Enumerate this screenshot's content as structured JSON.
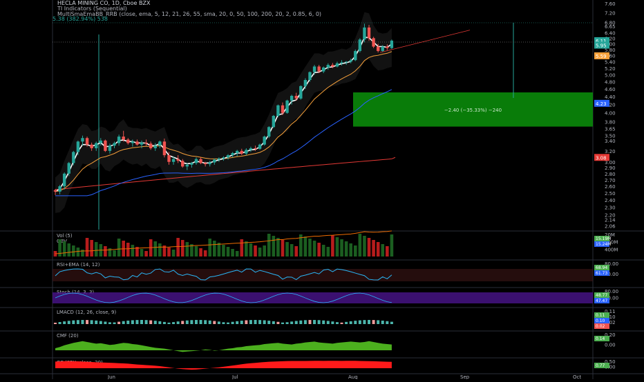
{
  "header": {
    "title": "HECLA MINING CO, 1D, Cboe BZX",
    "indicator1": "TI Indicators (Sequential)",
    "indicator2": "MultiSmaEmaBB_RRB (close, ema, 5, 12, 21, 26, 55, sma, 20, 0, 50, 100, 200, 20, 2, 0.85, 6, 0)",
    "measure_label": "5.38 (382.94%) 538"
  },
  "colors": {
    "background": "#000000",
    "up": "#26a69a",
    "down": "#ef5350",
    "green_box": "#0a8a0a",
    "ema5": "#ffffff",
    "ema21": "#f7a13b",
    "sma50": "#2962ff",
    "sma200": "#e53935",
    "cc_fill": "#ff1a1a",
    "cmf_fill": "#4caf1e",
    "stoch_band": "#4a148c",
    "rsi_line": "#29b6f6"
  },
  "chart_data": {
    "type": "candlestick",
    "x_ticks": [
      "Jun",
      "Jul",
      "Aug",
      "Sep",
      "Oct"
    ],
    "price_axis_ticks": [
      "7.60",
      "7.20",
      "6.80",
      "6.65",
      "6.40",
      "6.20",
      "6.00",
      "5.80",
      "5.60",
      "5.40",
      "5.20",
      "5.00",
      "4.80",
      "4.60",
      "4.40",
      "4.20",
      "4.00",
      "3.80",
      "3.65",
      "3.50",
      "3.40",
      "3.20",
      "3.00",
      "2.90",
      "2.80",
      "2.70",
      "2.60",
      "2.50",
      "2.40",
      "2.30",
      "2.20",
      "2.14",
      "2.06"
    ],
    "price_badges": [
      {
        "value": "6.11",
        "color": "#26a69a"
      },
      {
        "value": "5.95",
        "color": "#26a69a"
      },
      {
        "value": "5.59",
        "color": "#f7a13b"
      },
      {
        "value": "4.23",
        "color": "#2962ff"
      },
      {
        "value": "3.08",
        "color": "#e53935"
      }
    ],
    "candles": [
      [
        2.54,
        2.56,
        2.47,
        2.52
      ],
      [
        2.52,
        2.62,
        2.48,
        2.6
      ],
      [
        2.6,
        2.82,
        2.55,
        2.8
      ],
      [
        2.8,
        3.0,
        2.76,
        2.98
      ],
      [
        2.98,
        3.2,
        2.94,
        3.18
      ],
      [
        3.18,
        3.4,
        3.12,
        3.38
      ],
      [
        3.38,
        3.5,
        3.3,
        3.45
      ],
      [
        3.45,
        3.48,
        3.28,
        3.32
      ],
      [
        3.32,
        3.36,
        3.2,
        3.25
      ],
      [
        3.25,
        3.38,
        3.2,
        3.35
      ],
      [
        3.35,
        3.45,
        3.3,
        3.4
      ],
      [
        3.4,
        3.42,
        3.18,
        3.2
      ],
      [
        3.2,
        3.34,
        3.15,
        3.3
      ],
      [
        3.3,
        3.38,
        3.25,
        3.35
      ],
      [
        3.35,
        3.52,
        3.3,
        3.48
      ],
      [
        3.48,
        3.6,
        3.38,
        3.42
      ],
      [
        3.42,
        3.45,
        3.32,
        3.35
      ],
      [
        3.35,
        3.42,
        3.28,
        3.38
      ],
      [
        3.38,
        3.42,
        3.3,
        3.32
      ],
      [
        3.32,
        3.4,
        3.25,
        3.36
      ],
      [
        3.36,
        3.42,
        3.3,
        3.34
      ],
      [
        3.34,
        3.38,
        3.22,
        3.25
      ],
      [
        3.25,
        3.35,
        3.2,
        3.3
      ],
      [
        3.3,
        3.4,
        3.25,
        3.38
      ],
      [
        3.38,
        3.44,
        3.08,
        3.12
      ],
      [
        3.12,
        3.18,
        2.95,
        3.0
      ],
      [
        3.0,
        3.1,
        2.95,
        3.05
      ],
      [
        3.05,
        3.12,
        2.98,
        3.02
      ],
      [
        3.02,
        3.05,
        2.9,
        2.92
      ],
      [
        2.92,
        2.98,
        2.86,
        2.95
      ],
      [
        2.95,
        3.0,
        2.9,
        2.98
      ],
      [
        2.98,
        3.08,
        2.95,
        3.05
      ],
      [
        3.05,
        3.08,
        2.96,
        2.98
      ],
      [
        2.98,
        3.0,
        2.92,
        2.96
      ],
      [
        2.96,
        3.02,
        2.92,
        2.99
      ],
      [
        2.99,
        3.06,
        2.95,
        3.04
      ],
      [
        3.04,
        3.08,
        3.0,
        3.06
      ],
      [
        3.06,
        3.1,
        3.02,
        3.08
      ],
      [
        3.08,
        3.14,
        3.04,
        3.12
      ],
      [
        3.12,
        3.18,
        3.08,
        3.16
      ],
      [
        3.16,
        3.22,
        3.1,
        3.2
      ],
      [
        3.2,
        3.24,
        3.12,
        3.15
      ],
      [
        3.15,
        3.25,
        3.12,
        3.22
      ],
      [
        3.22,
        3.28,
        3.18,
        3.25
      ],
      [
        3.25,
        3.3,
        3.2,
        3.24
      ],
      [
        3.24,
        3.34,
        3.22,
        3.32
      ],
      [
        3.32,
        3.5,
        3.3,
        3.48
      ],
      [
        3.48,
        3.7,
        3.45,
        3.68
      ],
      [
        3.68,
        3.95,
        3.66,
        3.93
      ],
      [
        3.93,
        4.2,
        3.9,
        4.18
      ],
      [
        4.18,
        4.25,
        3.95,
        4.0
      ],
      [
        4.0,
        4.32,
        3.98,
        4.3
      ],
      [
        4.3,
        4.45,
        4.2,
        4.42
      ],
      [
        4.42,
        4.5,
        4.3,
        4.35
      ],
      [
        4.35,
        4.7,
        4.32,
        4.68
      ],
      [
        4.68,
        4.9,
        4.6,
        4.85
      ],
      [
        4.85,
        5.1,
        4.8,
        5.08
      ],
      [
        5.08,
        5.3,
        5.0,
        5.25
      ],
      [
        5.25,
        5.3,
        5.05,
        5.1
      ],
      [
        5.1,
        5.25,
        5.05,
        5.22
      ],
      [
        5.22,
        5.35,
        5.15,
        5.3
      ],
      [
        5.3,
        5.36,
        5.2,
        5.25
      ],
      [
        5.25,
        5.4,
        5.22,
        5.35
      ],
      [
        5.35,
        5.45,
        5.28,
        5.38
      ],
      [
        5.38,
        5.42,
        5.3,
        5.4
      ],
      [
        5.4,
        5.5,
        5.35,
        5.45
      ],
      [
        5.45,
        5.8,
        5.42,
        5.75
      ],
      [
        5.75,
        6.2,
        5.7,
        6.15
      ],
      [
        6.15,
        6.75,
        6.05,
        6.6
      ],
      [
        6.6,
        6.7,
        6.1,
        6.2
      ],
      [
        6.2,
        6.25,
        5.85,
        5.9
      ],
      [
        5.9,
        6.0,
        5.7,
        5.75
      ],
      [
        5.75,
        5.95,
        5.72,
        5.9
      ],
      [
        5.9,
        5.98,
        5.78,
        5.85
      ],
      [
        5.85,
        6.15,
        5.82,
        6.11
      ]
    ],
    "measure_box": {
      "label": "−2.40 (−35.33%) −240",
      "top": 4.51,
      "bottom": 3.69,
      "from_index": 70
    },
    "panes": [
      {
        "name": "Vol (5)",
        "sub": "OBV",
        "ticks": [
          "20M",
          "500M",
          "400M"
        ],
        "badges": [
          "15.19M",
          "15.24M"
        ]
      },
      {
        "name": "RSI+EMA (14, 12)",
        "ticks": [
          "80.00",
          "40.00"
        ],
        "badges": [
          "68.94",
          "61.73"
        ]
      },
      {
        "name": "Stoch (14, 3, 3)",
        "ticks": [
          "80.00",
          "20.00"
        ],
        "badges": [
          "48.77",
          "47.47"
        ]
      },
      {
        "name": "LMACD (12, 26, close, 9)",
        "ticks": [
          "0.11",
          "0.10",
          "0.02"
        ],
        "badges": [
          "0.11",
          "0.10",
          "0.02"
        ]
      },
      {
        "name": "CMF (20)",
        "ticks": [
          "0.20",
          "0.00"
        ],
        "badges": [
          "0.14"
        ]
      },
      {
        "name": "CC (SPX, close, 20)",
        "ticks": [
          "0.50",
          "0.00"
        ],
        "badges": [
          "0.77"
        ]
      }
    ],
    "cmf_values": [
      0.05,
      0.08,
      0.12,
      0.15,
      0.18,
      0.2,
      0.22,
      0.2,
      0.18,
      0.16,
      0.17,
      0.15,
      0.13,
      0.14,
      0.16,
      0.18,
      0.17,
      0.15,
      0.14,
      0.12,
      0.1,
      0.08,
      0.06,
      0.05,
      0.04,
      0.02,
      0.0,
      -0.02,
      -0.04,
      -0.03,
      -0.02,
      -0.01,
      0.0,
      0.02,
      0.01,
      -0.01,
      0.0,
      0.02,
      0.04,
      0.05,
      0.07,
      0.08,
      0.1,
      0.11,
      0.12,
      0.13,
      0.15,
      0.16,
      0.17,
      0.18,
      0.16,
      0.15,
      0.14,
      0.16,
      0.17,
      0.19,
      0.2,
      0.21,
      0.19,
      0.18,
      0.17,
      0.16,
      0.18,
      0.19,
      0.2,
      0.21,
      0.2,
      0.19,
      0.2,
      0.22,
      0.2,
      0.18,
      0.16,
      0.15,
      0.14
    ],
    "cc_values": [
      0.8,
      0.82,
      0.85,
      0.86,
      0.84,
      0.83,
      0.8,
      0.78,
      0.75,
      0.72,
      0.7,
      0.68,
      0.66,
      0.64,
      0.6,
      0.58,
      0.55,
      0.5,
      0.45,
      0.42,
      0.38,
      0.34,
      0.3,
      0.25,
      0.18,
      0.1,
      0.02,
      -0.05,
      -0.1,
      -0.15,
      -0.18,
      -0.16,
      -0.1,
      -0.05,
      0.0,
      0.05,
      0.1,
      0.18,
      0.25,
      0.32,
      0.4,
      0.48,
      0.55,
      0.6,
      0.65,
      0.7,
      0.74,
      0.78,
      0.8,
      0.82,
      0.84,
      0.86,
      0.88,
      0.88,
      0.87,
      0.88,
      0.89,
      0.9,
      0.9,
      0.89,
      0.9,
      0.9,
      0.9,
      0.89,
      0.9,
      0.9,
      0.9,
      0.88,
      0.86,
      0.85,
      0.84,
      0.82,
      0.8,
      0.78,
      0.77
    ]
  }
}
